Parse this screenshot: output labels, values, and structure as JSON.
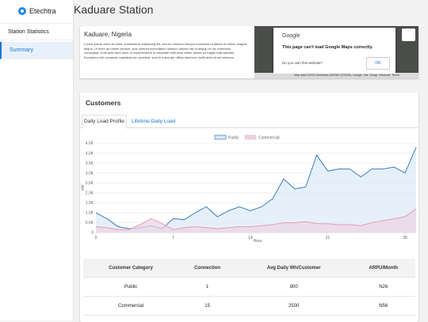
{
  "sidebar": {
    "brand": "Etechtra",
    "menu": [
      "Station Statistics",
      "Summary"
    ]
  },
  "header": {
    "title": "Kaduare Station"
  },
  "location": {
    "title": "Kaduare, Nigeria",
    "description": "Lorem ipsum dolor sit amet, consectetur adipiscing elit, sed do eiusmod tempor incididunt ut labore et dolore magna aliqua. Ut enim ad minim veniam, quis nostrud exercitation ullamco laboris nisi ut aliquip ex ea commodo consequat. Duis aute irure dolor in reprehenderit in voluptate velit esse cillum dolore eu fugiat nulla pariatur. Excepteur sint occaecat cupidatat non proident, sunt in culpa qui officia deserunt mollit anim id est laborum."
  },
  "map": {
    "dialog_title": "Google",
    "message": "This page can't load Google Maps correctly.",
    "question": "Do you own this website?",
    "button": "OK",
    "attribution": "Map data ©2023 GeoBasis-DE/BKG (©2009), Google, Inst. Geogr. Nacional",
    "terms": "Terms"
  },
  "customers": {
    "title": "Customers",
    "tabs": [
      "Daily Load Profile",
      "Lifetime Daily Load"
    ],
    "table": {
      "headers": [
        "Customer Category",
        "Connection",
        "Avg Daily Wh/Customer",
        "ARPU/Month"
      ],
      "rows": [
        [
          "Public",
          "1",
          "800",
          "N26"
        ],
        [
          "Commercial",
          "15",
          "2500",
          "N56"
        ]
      ]
    }
  },
  "chart_data": {
    "type": "area",
    "x": [
      0,
      1,
      2,
      3,
      4,
      5,
      6,
      7,
      8,
      9,
      10,
      11,
      12,
      13,
      14,
      15,
      16,
      17,
      18,
      19,
      20,
      21,
      22,
      23,
      24,
      25,
      26,
      27,
      28,
      29
    ],
    "xlim": [
      0,
      29
    ],
    "xticks": [
      0,
      7,
      14,
      21,
      28
    ],
    "x_label": "Hour",
    "y_label": "kW",
    "ylim": [
      0,
      4500
    ],
    "yticks": [
      0,
      {
        "value": 500,
        "label": "0.5K"
      },
      {
        "value": 1000,
        "label": "1.0K"
      },
      {
        "value": 1500,
        "label": "1.5K"
      },
      {
        "value": 2000,
        "label": "2.0K"
      },
      {
        "value": 2500,
        "label": "2.5K"
      },
      {
        "value": 3000,
        "label": "3.0K"
      },
      {
        "value": 3500,
        "label": "3.5K"
      },
      {
        "value": 4000,
        "label": "4.0K"
      },
      {
        "value": 4500,
        "label": "4.5K"
      }
    ],
    "grid": true,
    "legend": "top",
    "series": [
      {
        "name": "Public",
        "color": "#3b7dc4",
        "fill": "#dbe9f8",
        "values": [
          1000,
          700,
          300,
          200,
          250,
          350,
          200,
          700,
          650,
          1000,
          1300,
          800,
          1100,
          1300,
          1100,
          1300,
          1700,
          2700,
          2200,
          2300,
          3900,
          3100,
          3200,
          3200,
          2800,
          3200,
          3200,
          3300,
          3000,
          4300
        ]
      },
      {
        "name": "Commercial",
        "color": "#e79bb4",
        "fill": "#ecd3e6",
        "values": [
          300,
          250,
          150,
          150,
          400,
          700,
          450,
          150,
          250,
          300,
          250,
          200,
          250,
          300,
          300,
          350,
          400,
          500,
          500,
          550,
          450,
          450,
          400,
          400,
          350,
          500,
          600,
          700,
          800,
          1200
        ]
      }
    ]
  }
}
